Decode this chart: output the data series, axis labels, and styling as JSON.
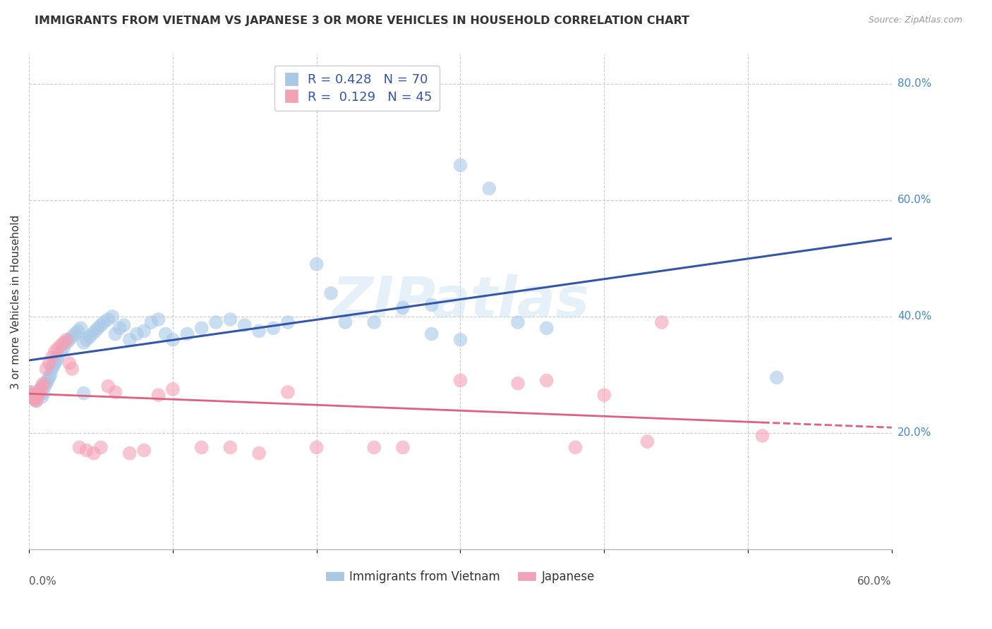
{
  "title": "IMMIGRANTS FROM VIETNAM VS JAPANESE 3 OR MORE VEHICLES IN HOUSEHOLD CORRELATION CHART",
  "source": "Source: ZipAtlas.com",
  "ylabel": "3 or more Vehicles in Household",
  "xlim": [
    0.0,
    0.6
  ],
  "ylim": [
    0.0,
    0.85
  ],
  "xtick_values": [
    0.0,
    0.1,
    0.2,
    0.3,
    0.4,
    0.5,
    0.6
  ],
  "xtick_labels_sparse": {
    "0.0": "0.0%",
    "0.60": "60.0%"
  },
  "ytick_values_right": [
    0.2,
    0.4,
    0.6,
    0.8
  ],
  "ytick_labels_right": [
    "20.0%",
    "40.0%",
    "60.0%",
    "80.0%"
  ],
  "color_blue": "#a8c8e8",
  "color_pink": "#f4a0b5",
  "line_blue": "#3355aa",
  "line_pink": "#e06080",
  "R_blue": 0.428,
  "N_blue": 70,
  "R_pink": 0.129,
  "N_pink": 45,
  "legend_label_blue": "Immigrants from Vietnam",
  "legend_label_pink": "Japanese",
  "watermark": "ZIPatlas",
  "blue_x": [
    0.001,
    0.002,
    0.003,
    0.004,
    0.005,
    0.006,
    0.007,
    0.008,
    0.009,
    0.01,
    0.011,
    0.012,
    0.013,
    0.014,
    0.015,
    0.016,
    0.017,
    0.018,
    0.019,
    0.02,
    0.022,
    0.024,
    0.026,
    0.028,
    0.03,
    0.032,
    0.034,
    0.036,
    0.038,
    0.04,
    0.042,
    0.044,
    0.046,
    0.048,
    0.05,
    0.052,
    0.055,
    0.058,
    0.06,
    0.063,
    0.066,
    0.07,
    0.075,
    0.08,
    0.085,
    0.09,
    0.095,
    0.1,
    0.11,
    0.12,
    0.13,
    0.14,
    0.15,
    0.16,
    0.17,
    0.18,
    0.2,
    0.21,
    0.22,
    0.24,
    0.26,
    0.28,
    0.3,
    0.32,
    0.34,
    0.36,
    0.28,
    0.3,
    0.52,
    0.038
  ],
  "blue_y": [
    0.27,
    0.265,
    0.26,
    0.258,
    0.255,
    0.268,
    0.272,
    0.275,
    0.262,
    0.268,
    0.28,
    0.285,
    0.29,
    0.295,
    0.3,
    0.31,
    0.315,
    0.32,
    0.325,
    0.33,
    0.34,
    0.345,
    0.355,
    0.36,
    0.365,
    0.37,
    0.375,
    0.38,
    0.355,
    0.36,
    0.365,
    0.37,
    0.375,
    0.38,
    0.385,
    0.39,
    0.395,
    0.4,
    0.37,
    0.38,
    0.385,
    0.36,
    0.37,
    0.375,
    0.39,
    0.395,
    0.37,
    0.36,
    0.37,
    0.38,
    0.39,
    0.395,
    0.385,
    0.375,
    0.38,
    0.39,
    0.49,
    0.44,
    0.39,
    0.39,
    0.415,
    0.42,
    0.66,
    0.62,
    0.39,
    0.38,
    0.37,
    0.36,
    0.295,
    0.268
  ],
  "pink_x": [
    0.001,
    0.002,
    0.003,
    0.004,
    0.005,
    0.006,
    0.007,
    0.008,
    0.009,
    0.01,
    0.012,
    0.014,
    0.016,
    0.018,
    0.02,
    0.022,
    0.024,
    0.026,
    0.028,
    0.03,
    0.035,
    0.04,
    0.045,
    0.05,
    0.055,
    0.06,
    0.07,
    0.08,
    0.09,
    0.1,
    0.12,
    0.14,
    0.16,
    0.18,
    0.2,
    0.24,
    0.26,
    0.3,
    0.34,
    0.36,
    0.38,
    0.4,
    0.43,
    0.44,
    0.51
  ],
  "pink_y": [
    0.27,
    0.265,
    0.26,
    0.258,
    0.255,
    0.262,
    0.268,
    0.275,
    0.28,
    0.285,
    0.31,
    0.32,
    0.33,
    0.34,
    0.345,
    0.35,
    0.355,
    0.36,
    0.32,
    0.31,
    0.175,
    0.17,
    0.165,
    0.175,
    0.28,
    0.27,
    0.165,
    0.17,
    0.265,
    0.275,
    0.175,
    0.175,
    0.165,
    0.27,
    0.175,
    0.175,
    0.175,
    0.29,
    0.285,
    0.29,
    0.175,
    0.265,
    0.185,
    0.39,
    0.195
  ]
}
